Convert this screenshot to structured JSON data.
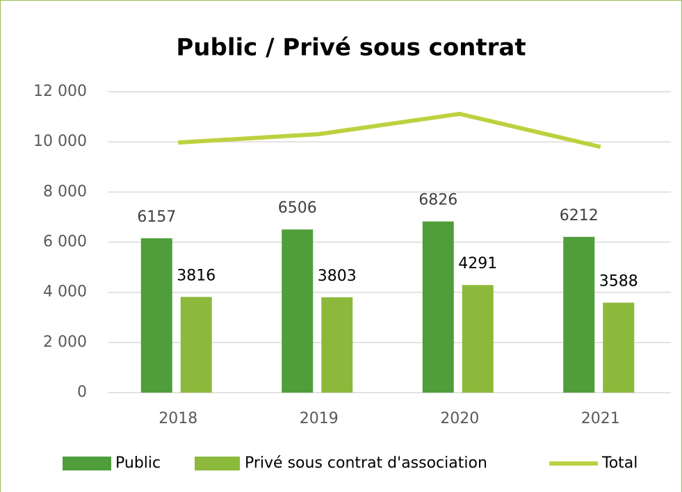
{
  "chart_data": {
    "type": "bar",
    "title": "Public / Privé sous contrat",
    "categories": [
      "2018",
      "2019",
      "2020",
      "2021"
    ],
    "series": [
      {
        "name": "Public",
        "color": "#4f9e3b",
        "values": [
          6157,
          6506,
          6826,
          6212
        ]
      },
      {
        "name": "Privé sous contrat d'association",
        "color": "#8cb93b",
        "values": [
          3816,
          3803,
          4291,
          3588
        ]
      },
      {
        "name": "Total",
        "type": "line",
        "color": "#bdd140",
        "values": [
          9973,
          10309,
          11117,
          9800
        ]
      }
    ],
    "ylim": [
      0,
      12000
    ],
    "yticks": [
      0,
      {
        "value": 2000,
        "label": "2 000"
      },
      {
        "value": 4000,
        "label": "4 000"
      },
      {
        "value": 6000,
        "label": "6 000"
      },
      {
        "value": 8000,
        "label": "8 000"
      },
      {
        "value": 10000,
        "label": "10 000"
      },
      {
        "value": 12000,
        "label": "12 000"
      }
    ],
    "grid": true,
    "legend": "bottom"
  }
}
